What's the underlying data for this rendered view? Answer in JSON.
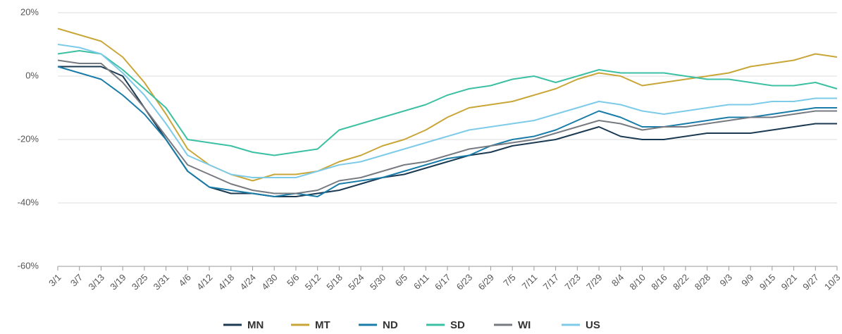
{
  "chart_data": {
    "type": "line",
    "categories": [
      "3/1",
      "3/7",
      "3/13",
      "3/19",
      "3/25",
      "3/31",
      "4/6",
      "4/12",
      "4/18",
      "4/24",
      "4/30",
      "5/6",
      "5/12",
      "5/18",
      "5/24",
      "5/30",
      "6/5",
      "6/11",
      "6/17",
      "6/23",
      "6/29",
      "7/5",
      "7/11",
      "7/17",
      "7/23",
      "7/29",
      "8/4",
      "8/10",
      "8/16",
      "8/22",
      "8/28",
      "9/3",
      "9/9",
      "9/15",
      "9/21",
      "9/27",
      "10/3"
    ],
    "series": [
      {
        "name": "MN",
        "color": "#1b3a52",
        "values": [
          3,
          3,
          3,
          0,
          -10,
          -20,
          -30,
          -35,
          -37,
          -37,
          -38,
          -38,
          -37,
          -36,
          -34,
          -32,
          -31,
          -29,
          -27,
          -25,
          -24,
          -22,
          -21,
          -20,
          -18,
          -16,
          -19,
          -20,
          -20,
          -19,
          -18,
          -18,
          -18,
          -17,
          -16,
          -15,
          -15
        ]
      },
      {
        "name": "MT",
        "color": "#c9a638",
        "values": [
          15,
          13,
          11,
          6,
          -2,
          -12,
          -23,
          -28,
          -31,
          -33,
          -31,
          -31,
          -30,
          -27,
          -25,
          -22,
          -20,
          -17,
          -13,
          -10,
          -9,
          -8,
          -6,
          -4,
          -1,
          1,
          0,
          -3,
          -2,
          -1,
          0,
          1,
          3,
          4,
          5,
          7,
          6
        ]
      },
      {
        "name": "ND",
        "color": "#1a7ca8",
        "values": [
          3,
          1,
          -1,
          -6,
          -12,
          -20,
          -30,
          -35,
          -36,
          -37,
          -38,
          -37,
          -38,
          -34,
          -33,
          -32,
          -30,
          -28,
          -26,
          -25,
          -22,
          -20,
          -19,
          -17,
          -14,
          -11,
          -13,
          -16,
          -16,
          -15,
          -14,
          -13,
          -13,
          -12,
          -11,
          -10,
          -10
        ]
      },
      {
        "name": "SD",
        "color": "#3cc0a3",
        "values": [
          7,
          8,
          7,
          2,
          -4,
          -10,
          -20,
          -21,
          -22,
          -24,
          -25,
          -24,
          -23,
          -17,
          -15,
          -13,
          -11,
          -9,
          -6,
          -4,
          -3,
          -1,
          0,
          -2,
          0,
          2,
          1,
          1,
          1,
          0,
          -1,
          -1,
          -2,
          -3,
          -3,
          -2,
          -4
        ]
      },
      {
        "name": "WI",
        "color": "#777a80",
        "values": [
          5,
          4,
          4,
          -2,
          -10,
          -19,
          -28,
          -31,
          -34,
          -36,
          -37,
          -37,
          -36,
          -33,
          -32,
          -30,
          -28,
          -27,
          -25,
          -23,
          -22,
          -21,
          -20,
          -18,
          -16,
          -14,
          -15,
          -17,
          -16,
          -16,
          -15,
          -14,
          -13,
          -13,
          -12,
          -11,
          -11
        ]
      },
      {
        "name": "US",
        "color": "#7dcbe8",
        "values": [
          10,
          9,
          7,
          1,
          -6,
          -15,
          -25,
          -28,
          -31,
          -32,
          -32,
          -32,
          -30,
          -28,
          -27,
          -25,
          -23,
          -21,
          -19,
          -17,
          -16,
          -15,
          -14,
          -12,
          -10,
          -8,
          -9,
          -11,
          -12,
          -11,
          -10,
          -9,
          -9,
          -8,
          -8,
          -7,
          -7
        ]
      }
    ],
    "ylim": [
      -60,
      20
    ],
    "yticks": [
      {
        "value": -60,
        "label": "-60%"
      },
      {
        "value": -40,
        "label": "-40%"
      },
      {
        "value": -20,
        "label": "-20%"
      },
      {
        "value": 0,
        "label": "0%"
      },
      {
        "value": 20,
        "label": "20%"
      }
    ],
    "grid": true,
    "legend": "bottom"
  }
}
